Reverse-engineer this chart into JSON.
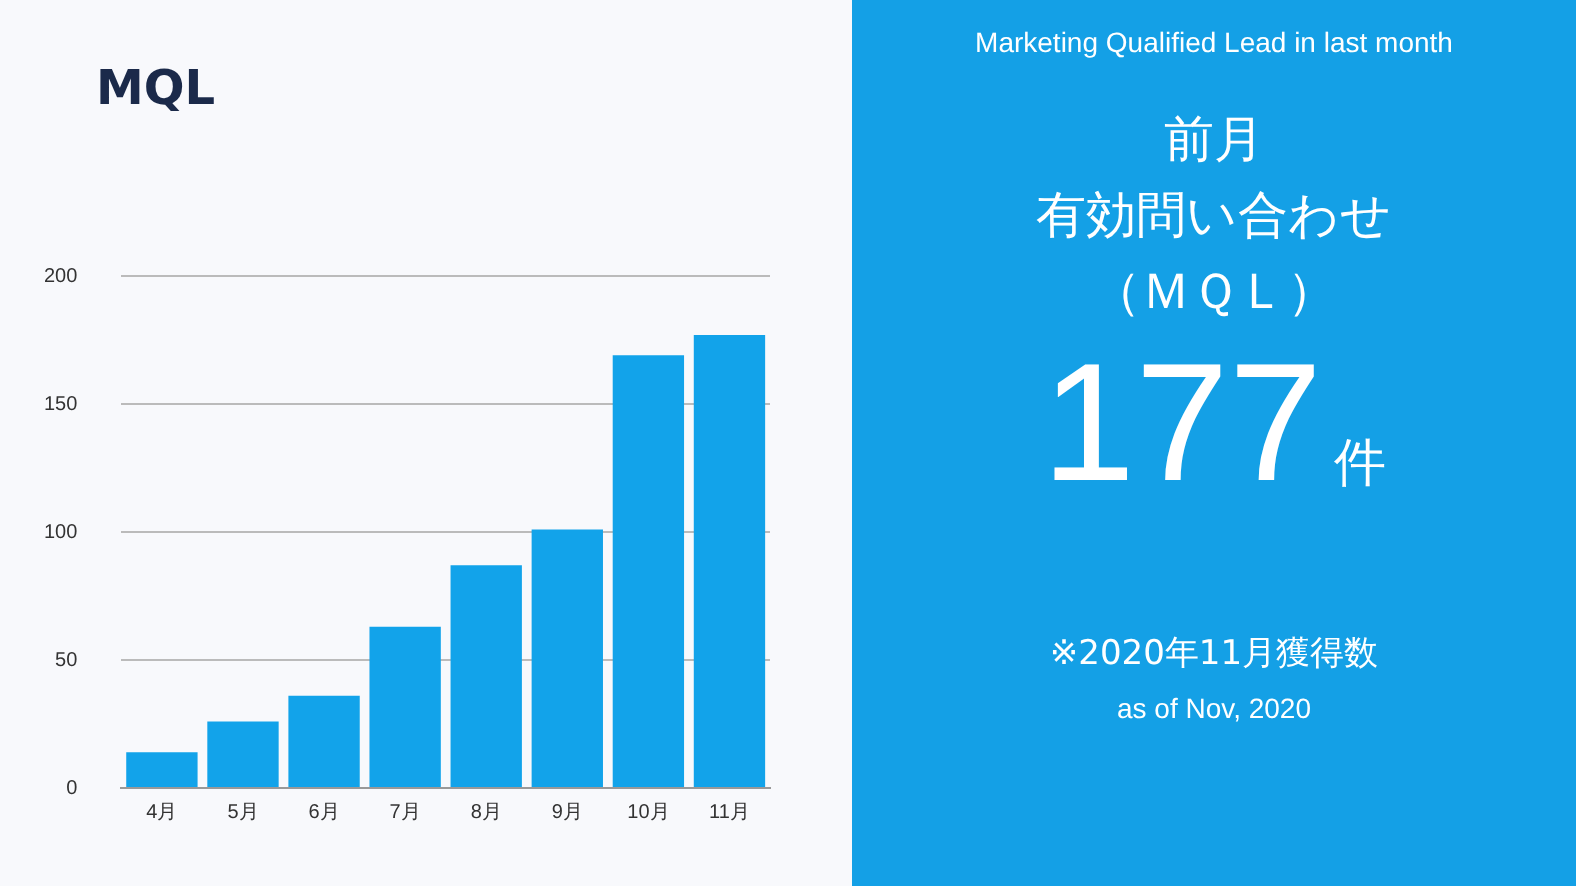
{
  "chart_data": [
    {
      "type": "bar",
      "title": "MQL",
      "categories": [
        "4月",
        "5月",
        "6月",
        "7月",
        "8月",
        "9月",
        "10月",
        "11月"
      ],
      "values": [
        14,
        26,
        36,
        63,
        87,
        101,
        169,
        177
      ],
      "color": "#12a3ea",
      "ylim": [
        0,
        200
      ],
      "yticks": [
        0,
        50,
        100,
        150,
        200
      ],
      "grid": "y",
      "legend": false
    },
    {
      "type": "other",
      "title": "Marketing Qualified Lead in last month",
      "annotations": [
        "前月",
        "有効問い合わせ",
        "（ＭＱＬ）",
        "177",
        "件",
        "※2020年11月獲得数",
        "as of Nov, 2020"
      ]
    }
  ]
}
